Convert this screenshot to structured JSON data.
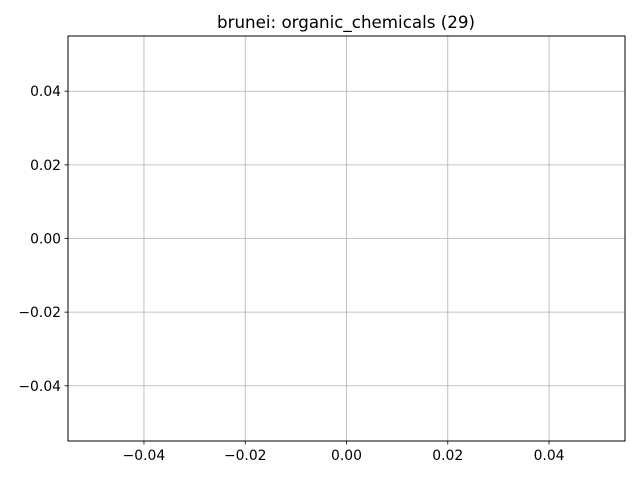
{
  "chart_data": {
    "type": "line",
    "title": "brunei: organic_chemicals (29)",
    "xlabel": "",
    "ylabel": "",
    "x": [],
    "series": [],
    "xlim": [
      -0.055,
      0.055
    ],
    "ylim": [
      -0.055,
      0.055
    ],
    "xticks": [
      -0.04,
      -0.02,
      0.0,
      0.02,
      0.04
    ],
    "yticks": [
      -0.04,
      -0.02,
      0.0,
      0.02,
      0.04
    ],
    "xtick_labels": [
      "−0.04",
      "−0.02",
      "0.00",
      "0.02",
      "0.04"
    ],
    "ytick_labels": [
      "−0.04",
      "−0.02",
      "0.00",
      "0.02",
      "0.04"
    ],
    "grid": true,
    "legend": false,
    "colors": {
      "grid": "#b0b0b0",
      "axes": "#000000",
      "background": "#ffffff"
    }
  }
}
